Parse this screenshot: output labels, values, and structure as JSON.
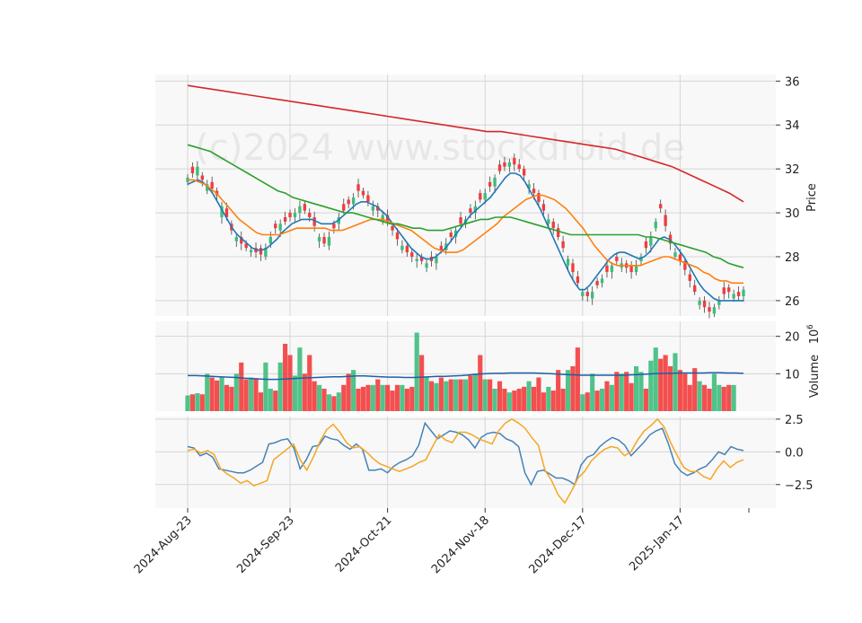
{
  "chart_data": [
    {
      "type": "candlestick",
      "panel": "price",
      "ylabel": "Price",
      "ylim": [
        25.3,
        36.3
      ],
      "yticks": [
        26,
        28,
        30,
        32,
        34,
        36
      ],
      "watermark": "(c)2024 www.stockdroid.de",
      "x_tick_labels": [
        "2024-Aug-23",
        "2024-Sep-23",
        "2024-Oct-21",
        "2024-Nov-18",
        "2024-Dec-17",
        "2025-Jan-17"
      ],
      "x_tick_index": [
        0,
        21,
        41,
        61,
        81,
        101
      ],
      "grid": true,
      "colors": {
        "up": "#3dbd7d",
        "down": "#f23c3c",
        "ma_fast": "#1f77b4",
        "ma_mid": "#ff7f0e",
        "ma_slow": "#2ca02c",
        "ma_long": "#d62728"
      },
      "close": [
        31.6,
        31.8,
        32.1,
        31.5,
        31.3,
        31.1,
        30.8,
        30.3,
        29.8,
        29.2,
        28.9,
        28.6,
        28.4,
        28.3,
        28.2,
        28.1,
        28.4,
        28.9,
        29.3,
        29.5,
        29.6,
        29.8,
        30.0,
        30.3,
        30.1,
        29.8,
        29.4,
        28.9,
        28.6,
        28.9,
        29.3,
        29.8,
        30.1,
        30.4,
        30.7,
        31.0,
        30.8,
        30.5,
        30.3,
        30.1,
        29.9,
        29.6,
        29.2,
        28.8,
        28.5,
        28.2,
        28.0,
        27.9,
        27.8,
        27.7,
        27.8,
        28.0,
        28.3,
        28.6,
        28.9,
        29.2,
        29.5,
        29.7,
        30.0,
        30.3,
        30.6,
        30.9,
        31.2,
        31.6,
        31.9,
        32.1,
        32.3,
        32.2,
        32.0,
        31.7,
        31.3,
        30.9,
        30.5,
        30.1,
        29.7,
        29.3,
        28.9,
        28.4,
        27.9,
        27.3,
        26.8,
        26.4,
        26.2,
        26.4,
        26.7,
        27.0,
        27.3,
        27.6,
        27.8,
        27.7,
        27.5,
        27.3,
        27.6,
        28.0,
        28.4,
        28.9,
        29.6,
        30.2,
        29.4,
        28.6,
        28.2,
        27.8,
        27.4,
        26.9,
        26.4,
        26.0,
        25.7,
        25.5,
        25.7,
        26.0,
        26.3,
        26.4,
        26.3,
        26.2,
        26.5
      ],
      "open_offset": [
        -0.2,
        0.3,
        -0.4,
        0.2,
        -0.3,
        0.3,
        0.2,
        -0.5,
        0.4,
        0.3,
        -0.2,
        0.3,
        0.2,
        -0.1,
        0.2,
        0.3,
        -0.4,
        -0.3,
        0.2,
        -0.3,
        0.2,
        0.2,
        -0.2,
        -0.3,
        0.3,
        0.2,
        0.4,
        -0.2,
        0.3,
        -0.4,
        0.2,
        -0.3,
        0.3,
        0.2,
        -0.3,
        0.3,
        0.2,
        0.3,
        -0.2,
        0.2,
        -0.3,
        0.3,
        0.2,
        0.3,
        -0.2,
        0.3,
        0.2,
        -0.1,
        0.2,
        -0.2,
        0.2,
        -0.3,
        0.2,
        -0.3,
        0.2,
        -0.3,
        0.3,
        -0.2,
        0.2,
        -0.3,
        0.3,
        -0.3,
        0.2,
        -0.4,
        0.3,
        0.2,
        -0.2,
        0.3,
        0.2,
        0.3,
        -0.2,
        0.2,
        0.4,
        0.3,
        -0.2,
        0.3,
        0.4,
        0.3,
        -0.3,
        0.4,
        0.3,
        -0.2,
        0.2,
        -0.3,
        0.2,
        -0.2,
        0.3,
        -0.3,
        0.2,
        -0.2,
        0.2,
        0.3,
        -0.3,
        -0.2,
        0.3,
        -0.4,
        -0.3,
        0.2,
        0.5,
        0.4,
        -0.2,
        0.3,
        0.4,
        0.3,
        0.3,
        -0.2,
        0.3,
        0.2,
        -0.3,
        -0.2,
        0.3,
        0.2,
        -0.2,
        0.2,
        -0.3
      ],
      "series": [
        {
          "name": "",
          "values": [
            31.3,
            31.4,
            31.5,
            31.4,
            31.2,
            30.9,
            30.5,
            30.1,
            29.7,
            29.3,
            29.0,
            28.8,
            28.6,
            28.4,
            28.3,
            28.3,
            28.4,
            28.6,
            28.8,
            29.1,
            29.3,
            29.5,
            29.6,
            29.7,
            29.7,
            29.7,
            29.6,
            29.5,
            29.5,
            29.5,
            29.6,
            29.8,
            30.0,
            30.2,
            30.4,
            30.5,
            30.5,
            30.4,
            30.3,
            30.1,
            29.9,
            29.6,
            29.3,
            29.0,
            28.7,
            28.4,
            28.2,
            28.0,
            27.9,
            27.9,
            28.0,
            28.2,
            28.4,
            28.7,
            29.0,
            29.3,
            29.6,
            29.9,
            30.1,
            30.3,
            30.5,
            30.7,
            31.0,
            31.3,
            31.6,
            31.8,
            31.8,
            31.7,
            31.4,
            31.0,
            30.6,
            30.2,
            29.7,
            29.2,
            28.7,
            28.2,
            27.7,
            27.2,
            26.8,
            26.5,
            26.5,
            26.7,
            27.0,
            27.3,
            27.6,
            27.9,
            28.1,
            28.2,
            28.2,
            28.1,
            28.0,
            27.9,
            28.0,
            28.2,
            28.5,
            28.8,
            28.9,
            28.8,
            28.6,
            28.3,
            28.0,
            27.6,
            27.2,
            26.8,
            26.5,
            26.3,
            26.1,
            26.0,
            26.0,
            26.0,
            26.0,
            26.0,
            26.0
          ]
        },
        {
          "name": "",
          "values": [
            31.5,
            31.5,
            31.4,
            31.3,
            31.1,
            30.9,
            30.6,
            30.3,
            30.0,
            29.7,
            29.5,
            29.3,
            29.1,
            29.0,
            29.0,
            29.0,
            29.0,
            29.1,
            29.2,
            29.3,
            29.3,
            29.3,
            29.3,
            29.3,
            29.3,
            29.2,
            29.2,
            29.2,
            29.3,
            29.4,
            29.5,
            29.6,
            29.7,
            29.7,
            29.7,
            29.6,
            29.5,
            29.4,
            29.3,
            29.2,
            29.0,
            28.8,
            28.6,
            28.4,
            28.3,
            28.2,
            28.2,
            28.2,
            28.3,
            28.5,
            28.7,
            28.9,
            29.1,
            29.3,
            29.5,
            29.8,
            30.0,
            30.2,
            30.4,
            30.6,
            30.7,
            30.8,
            30.8,
            30.7,
            30.6,
            30.4,
            30.2,
            29.9,
            29.6,
            29.3,
            28.9,
            28.5,
            28.2,
            27.9,
            27.7,
            27.6,
            27.6,
            27.6,
            27.6,
            27.6,
            27.7,
            27.8,
            27.9,
            28.0,
            28.0,
            27.9,
            27.8,
            27.7,
            27.6,
            27.5,
            27.3,
            27.2,
            27.0,
            26.9,
            26.9,
            26.8,
            26.8,
            26.8
          ]
        },
        {
          "name": "",
          "values": [
            33.1,
            33.0,
            32.9,
            32.8,
            32.6,
            32.4,
            32.2,
            32.0,
            31.8,
            31.6,
            31.4,
            31.2,
            31.0,
            30.9,
            30.7,
            30.6,
            30.5,
            30.4,
            30.3,
            30.2,
            30.1,
            30.0,
            30.0,
            29.9,
            29.8,
            29.7,
            29.6,
            29.5,
            29.5,
            29.4,
            29.3,
            29.3,
            29.2,
            29.2,
            29.2,
            29.3,
            29.4,
            29.5,
            29.6,
            29.7,
            29.7,
            29.8,
            29.8,
            29.8,
            29.7,
            29.6,
            29.5,
            29.4,
            29.3,
            29.2,
            29.1,
            29.0,
            29.0,
            29.0,
            29.0,
            29.0,
            29.0,
            29.0,
            29.0,
            29.0,
            29.0,
            28.9,
            28.9,
            28.8,
            28.7,
            28.6,
            28.5,
            28.4,
            28.3,
            28.2,
            28.0,
            27.9,
            27.7,
            27.6,
            27.5
          ]
        },
        {
          "name": "",
          "values": [
            35.8,
            35.7,
            35.6,
            35.5,
            35.4,
            35.3,
            35.2,
            35.1,
            35.0,
            34.9,
            34.8,
            34.7,
            34.6,
            34.5,
            34.4,
            34.3,
            34.2,
            34.1,
            34.0,
            33.9,
            33.8,
            33.7,
            33.7,
            33.6,
            33.5,
            33.4,
            33.3,
            33.2,
            33.1,
            33.0,
            32.9,
            32.7,
            32.5,
            32.3,
            32.1,
            31.8,
            31.5,
            31.2,
            30.9,
            30.5
          ]
        }
      ]
    },
    {
      "type": "bar",
      "panel": "volume",
      "ylabel": "Volume",
      "scale_label": "10^6",
      "ylim": [
        0,
        24
      ],
      "yticks": [
        10,
        20
      ],
      "ma_color": "#1f5fa8",
      "values": [
        4.2,
        4.5,
        4.8,
        4.5,
        10.0,
        9.0,
        8.2,
        9.0,
        7.0,
        6.5,
        10.0,
        13.0,
        8.5,
        9.0,
        8.8,
        5.0,
        13.0,
        6.0,
        5.5,
        13.0,
        18.0,
        15.0,
        9.5,
        17.0,
        10.0,
        15.0,
        8.0,
        7.0,
        6.0,
        4.5,
        4.0,
        5.0,
        7.0,
        10.0,
        11.0,
        6.0,
        6.5,
        7.0,
        7.0,
        8.5,
        7.0,
        7.0,
        5.5,
        7.0,
        7.0,
        6.0,
        6.5,
        21.0,
        15.0,
        9.0,
        8.0,
        7.5,
        9.0,
        8.0,
        8.5,
        8.5,
        8.5,
        8.5,
        9.5,
        10.0,
        15.0,
        8.5,
        8.5,
        6.0,
        8.0,
        6.0,
        5.0,
        5.5,
        6.0,
        6.5,
        8.0,
        6.5,
        9.0,
        5.0,
        6.5,
        5.5,
        11.0,
        6.0,
        11.0,
        12.0,
        17.0,
        4.5,
        5.0,
        10.0,
        5.5,
        6.0,
        8.0,
        7.0,
        10.5,
        10.0,
        10.5,
        7.5,
        12.0,
        10.5,
        6.0,
        13.5,
        17.0,
        14.0,
        15.0,
        12.0,
        15.5,
        11.0,
        10.0,
        7.0,
        11.5,
        8.0,
        7.0,
        6.0,
        10.0,
        7.0,
        6.5,
        7.0,
        7.0
      ],
      "moving_average": [
        9.5,
        9.5,
        9.4,
        9.3,
        9.2,
        9.1,
        9.0,
        8.8,
        8.7,
        8.6,
        8.5,
        8.5,
        8.6,
        8.7,
        8.8,
        8.9,
        9.0,
        9.1,
        9.2,
        9.2,
        9.3,
        9.4,
        9.4,
        9.3,
        9.2,
        9.1,
        9.1,
        9.0,
        9.0,
        9.1,
        9.2,
        9.3,
        9.3,
        9.4,
        9.5,
        9.7,
        9.9,
        10.0,
        10.1,
        10.1,
        10.2,
        10.2,
        10.2,
        10.2,
        10.1,
        10.0,
        9.9,
        9.8,
        9.7,
        9.6,
        9.6,
        9.6,
        9.6,
        9.6,
        9.6,
        9.7,
        9.8,
        9.9,
        10.0,
        10.1,
        10.1,
        10.2,
        10.2,
        10.2,
        10.2,
        10.3,
        10.3,
        10.2,
        10.2,
        10.1
      ]
    },
    {
      "type": "line",
      "panel": "oscillator",
      "ylim": [
        -4.3,
        2.7
      ],
      "yticks": [
        -2.5,
        0.0,
        2.5
      ],
      "series": [
        {
          "name": "",
          "color": "#4682b4",
          "values": [
            0.4,
            0.3,
            -0.3,
            -0.1,
            -0.4,
            -1.3,
            -1.4,
            -1.5,
            -1.6,
            -1.6,
            -1.4,
            -1.1,
            -0.8,
            0.6,
            0.7,
            0.9,
            1.0,
            0.3,
            -1.3,
            -0.6,
            0.4,
            0.5,
            1.2,
            1.0,
            0.9,
            0.5,
            0.2,
            0.6,
            0.2,
            -1.4,
            -1.4,
            -1.3,
            -1.6,
            -1.1,
            -0.8,
            -0.6,
            -0.3,
            0.5,
            2.2,
            1.6,
            1.0,
            1.3,
            1.6,
            1.5,
            1.3,
            0.9,
            0.3,
            1.1,
            1.4,
            1.5,
            1.4,
            1.0,
            0.8,
            0.4,
            -1.6,
            -2.5,
            -1.5,
            -1.4,
            -1.7,
            -2.0,
            -2.0,
            -2.2,
            -2.5,
            -1.0,
            -0.4,
            -0.2,
            0.4,
            0.8,
            1.1,
            0.9,
            0.5,
            -0.3,
            0.2,
            0.7,
            1.3,
            1.6,
            1.8,
            0.6,
            -0.9,
            -1.5,
            -1.8,
            -1.6,
            -1.3,
            -1.1,
            -0.6,
            0.0,
            -0.2,
            0.4,
            0.2,
            0.1
          ]
        },
        {
          "name": "",
          "color": "#f5a623",
          "values": [
            0.1,
            0.2,
            -0.1,
            0.1,
            -0.2,
            -1.3,
            -1.7,
            -2.0,
            -2.4,
            -2.2,
            -2.6,
            -2.4,
            -2.2,
            -0.6,
            -0.2,
            0.2,
            0.6,
            -0.6,
            -1.4,
            -0.4,
            0.8,
            1.7,
            2.1,
            1.5,
            0.7,
            0.3,
            0.4,
            0.0,
            -0.5,
            -0.9,
            -1.1,
            -1.3,
            -1.5,
            -1.3,
            -1.1,
            -0.8,
            -0.6,
            0.4,
            1.3,
            0.9,
            0.7,
            1.5,
            1.5,
            1.3,
            1.0,
            0.8,
            0.6,
            1.6,
            2.2,
            2.5,
            2.2,
            1.8,
            1.1,
            0.5,
            -1.4,
            -2.2,
            -3.3,
            -3.9,
            -3.0,
            -2.0,
            -1.5,
            -0.7,
            -0.2,
            0.2,
            0.4,
            0.3,
            -0.3,
            0.0,
            0.9,
            1.6,
            2.0,
            2.5,
            1.9,
            0.7,
            -0.3,
            -1.2,
            -1.5,
            -1.5,
            -1.9,
            -2.1,
            -1.3,
            -0.7,
            -1.2,
            -0.8,
            -0.6
          ]
        }
      ]
    }
  ]
}
